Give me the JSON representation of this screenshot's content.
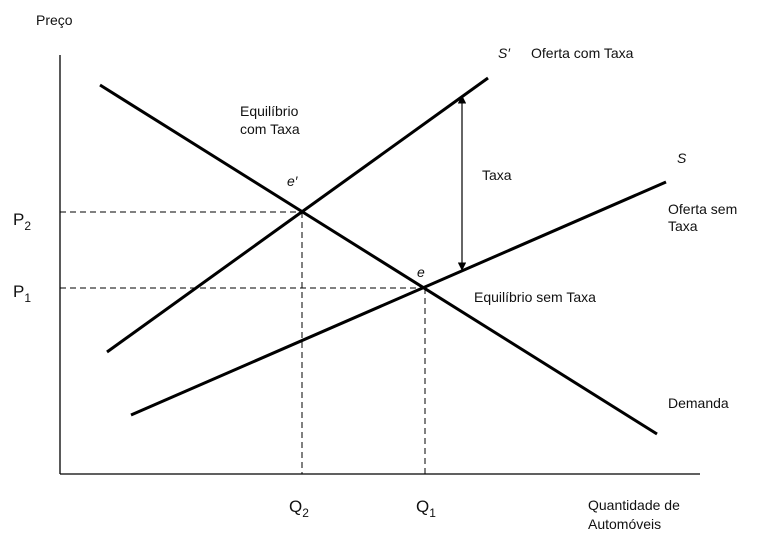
{
  "axes": {
    "y_label": "Preço",
    "x_label_line1": "Quantidade de",
    "x_label_line2": "Automóveis"
  },
  "curves": {
    "demand_label": "Demanda",
    "supply_label": "S",
    "supply_desc_line1": "Oferta sem",
    "supply_desc_line2": "Taxa",
    "supply_tax_label": "S′",
    "supply_tax_desc": "Oferta com Taxa"
  },
  "equilibria": {
    "e_label": "e",
    "e_desc": "Equilíbrio sem Taxa",
    "e_prime_label": "e′",
    "e_prime_desc_line1": "Equilíbrio",
    "e_prime_desc_line2": "com Taxa"
  },
  "tax_label": "Taxa",
  "ticks": {
    "p2": {
      "main": "P",
      "sub": "2"
    },
    "p1": {
      "main": "P",
      "sub": "1"
    },
    "q2": {
      "main": "Q",
      "sub": "2"
    },
    "q1": {
      "main": "Q",
      "sub": "1"
    }
  }
}
